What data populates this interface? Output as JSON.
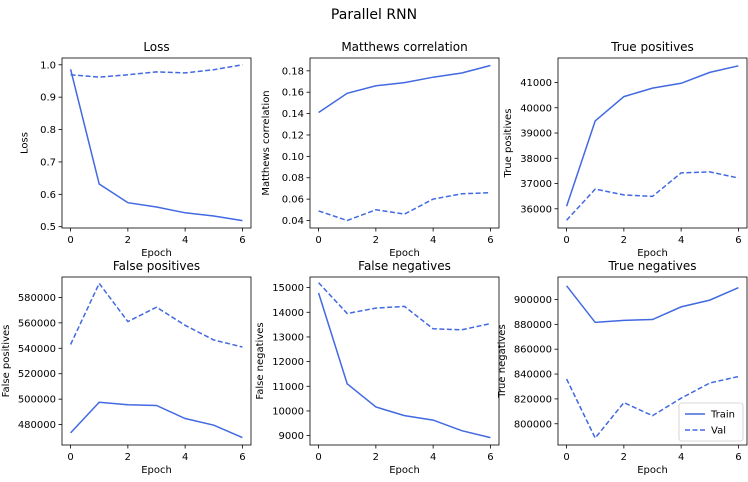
{
  "figure_title": "Parallel RNN",
  "line_color": "#4169e1",
  "chart_data": [
    {
      "type": "line",
      "title": "Loss",
      "xlabel": "Epoch",
      "ylabel": "Loss",
      "x": [
        0,
        1,
        2,
        3,
        4,
        5,
        6
      ],
      "xlim": [
        -0.3,
        6.3
      ],
      "ylim": [
        0.496,
        1.021
      ],
      "xticks": [
        0,
        2,
        4,
        6
      ],
      "yticks": [
        0.5,
        0.6,
        0.7,
        0.8,
        0.9,
        1.0
      ],
      "ytick_labels": [
        "0.5",
        "0.6",
        "0.7",
        "0.8",
        "0.9",
        "1.0"
      ],
      "series": [
        {
          "name": "Train",
          "values": [
            0.986,
            0.632,
            0.574,
            0.561,
            0.543,
            0.533,
            0.519
          ]
        },
        {
          "name": "Val",
          "values": [
            0.969,
            0.962,
            0.969,
            0.978,
            0.975,
            0.985,
            1.0
          ]
        }
      ]
    },
    {
      "type": "line",
      "title": "Matthews correlation",
      "xlabel": "Epoch",
      "ylabel": "Matthews correlation",
      "x": [
        0,
        1,
        2,
        3,
        4,
        5,
        6
      ],
      "xlim": [
        -0.3,
        6.3
      ],
      "ylim": [
        0.033,
        0.192
      ],
      "xticks": [
        0,
        2,
        4,
        6
      ],
      "yticks": [
        0.04,
        0.06,
        0.08,
        0.1,
        0.12,
        0.14,
        0.16,
        0.18
      ],
      "ytick_labels": [
        "0.04",
        "0.06",
        "0.08",
        "0.10",
        "0.12",
        "0.14",
        "0.16",
        "0.18"
      ],
      "series": [
        {
          "name": "Train",
          "values": [
            0.141,
            0.159,
            0.166,
            0.169,
            0.174,
            0.178,
            0.185
          ]
        },
        {
          "name": "Val",
          "values": [
            0.049,
            0.04,
            0.05,
            0.046,
            0.06,
            0.065,
            0.066
          ]
        }
      ]
    },
    {
      "type": "line",
      "title": "True positives",
      "xlabel": "Epoch",
      "ylabel": "True positives",
      "x": [
        0,
        1,
        2,
        3,
        4,
        5,
        6
      ],
      "xlim": [
        -0.3,
        6.3
      ],
      "ylim": [
        35240,
        41970
      ],
      "xticks": [
        0,
        2,
        4,
        6
      ],
      "yticks": [
        36000,
        37000,
        38000,
        39000,
        40000,
        41000
      ],
      "ytick_labels": [
        "36000",
        "37000",
        "38000",
        "39000",
        "40000",
        "41000"
      ],
      "series": [
        {
          "name": "Train",
          "values": [
            36100,
            39480,
            40440,
            40780,
            40970,
            41400,
            41660
          ]
        },
        {
          "name": "Val",
          "values": [
            35550,
            36780,
            36550,
            36490,
            37420,
            37460,
            37220
          ]
        }
      ]
    },
    {
      "type": "line",
      "title": "False positives",
      "xlabel": "Epoch",
      "ylabel": "False positives",
      "x": [
        0,
        1,
        2,
        3,
        4,
        5,
        6
      ],
      "xlim": [
        -0.3,
        6.3
      ],
      "ylim": [
        463950,
        596050
      ],
      "xticks": [
        0,
        2,
        4,
        6
      ],
      "yticks": [
        480000,
        500000,
        520000,
        540000,
        560000,
        580000
      ],
      "ytick_labels": [
        "480000",
        "500000",
        "520000",
        "540000",
        "560000",
        "580000"
      ],
      "series": [
        {
          "name": "Train",
          "values": [
            473500,
            497500,
            495600,
            495000,
            484800,
            479500,
            469800
          ]
        },
        {
          "name": "Val",
          "values": [
            543000,
            591000,
            561000,
            572300,
            558100,
            546500,
            541000
          ]
        }
      ]
    },
    {
      "type": "line",
      "title": "False negatives",
      "xlabel": "Epoch",
      "ylabel": "False negatives",
      "x": [
        0,
        1,
        2,
        3,
        4,
        5,
        6
      ],
      "xlim": [
        -0.3,
        6.3
      ],
      "ylim": [
        8620,
        15430
      ],
      "xticks": [
        0,
        2,
        4,
        6
      ],
      "yticks": [
        9000,
        10000,
        11000,
        12000,
        13000,
        14000,
        15000
      ],
      "ytick_labels": [
        "9000",
        "10000",
        "11000",
        "12000",
        "13000",
        "14000",
        "15000"
      ],
      "series": [
        {
          "name": "Train",
          "values": [
            14780,
            11100,
            10160,
            9810,
            9630,
            9200,
            8920
          ]
        },
        {
          "name": "Val",
          "values": [
            15200,
            13950,
            14170,
            14240,
            13330,
            13290,
            13540
          ]
        }
      ]
    },
    {
      "type": "line",
      "title": "True negatives",
      "xlabel": "Epoch",
      "ylabel": "True negatives",
      "x": [
        0,
        1,
        2,
        3,
        4,
        5,
        6
      ],
      "xlim": [
        -0.3,
        6.3
      ],
      "ylim": [
        782900,
        918100
      ],
      "xticks": [
        0,
        2,
        4,
        6
      ],
      "yticks": [
        800000,
        820000,
        840000,
        860000,
        880000,
        900000
      ],
      "ytick_labels": [
        "800000",
        "820000",
        "840000",
        "860000",
        "880000",
        "900000"
      ],
      "series": [
        {
          "name": "Train",
          "values": [
            911000,
            881600,
            883200,
            883900,
            894000,
            899500,
            909500
          ]
        },
        {
          "name": "Val",
          "values": [
            836000,
            788500,
            817000,
            806500,
            820600,
            832800,
            838000
          ]
        }
      ],
      "legend": {
        "placement": "lower-right",
        "entries": [
          "Train",
          "Val"
        ]
      }
    }
  ]
}
